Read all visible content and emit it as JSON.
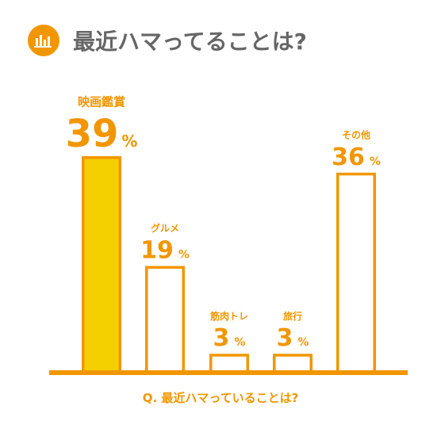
{
  "header": {
    "title": "最近ハマってることは?",
    "icon": "bar-chart-icon"
  },
  "colors": {
    "accent": "#F29600",
    "highlight_fill": "#F5D000",
    "title_gray": "#666666",
    "background": "#FFFFFF"
  },
  "chart_data": {
    "type": "bar",
    "title": "最近ハマってることは?",
    "xlabel": "Q. 最近ハマっていることは?",
    "ylabel": "",
    "unit": "%",
    "categories": [
      "映画鑑賞",
      "グルメ",
      "筋肉トレ",
      "旅行",
      "その他"
    ],
    "values": [
      39,
      19,
      3,
      3,
      36
    ],
    "highlight_index": 0,
    "ylim": [
      0,
      39
    ],
    "grid": false,
    "legend": "none"
  }
}
